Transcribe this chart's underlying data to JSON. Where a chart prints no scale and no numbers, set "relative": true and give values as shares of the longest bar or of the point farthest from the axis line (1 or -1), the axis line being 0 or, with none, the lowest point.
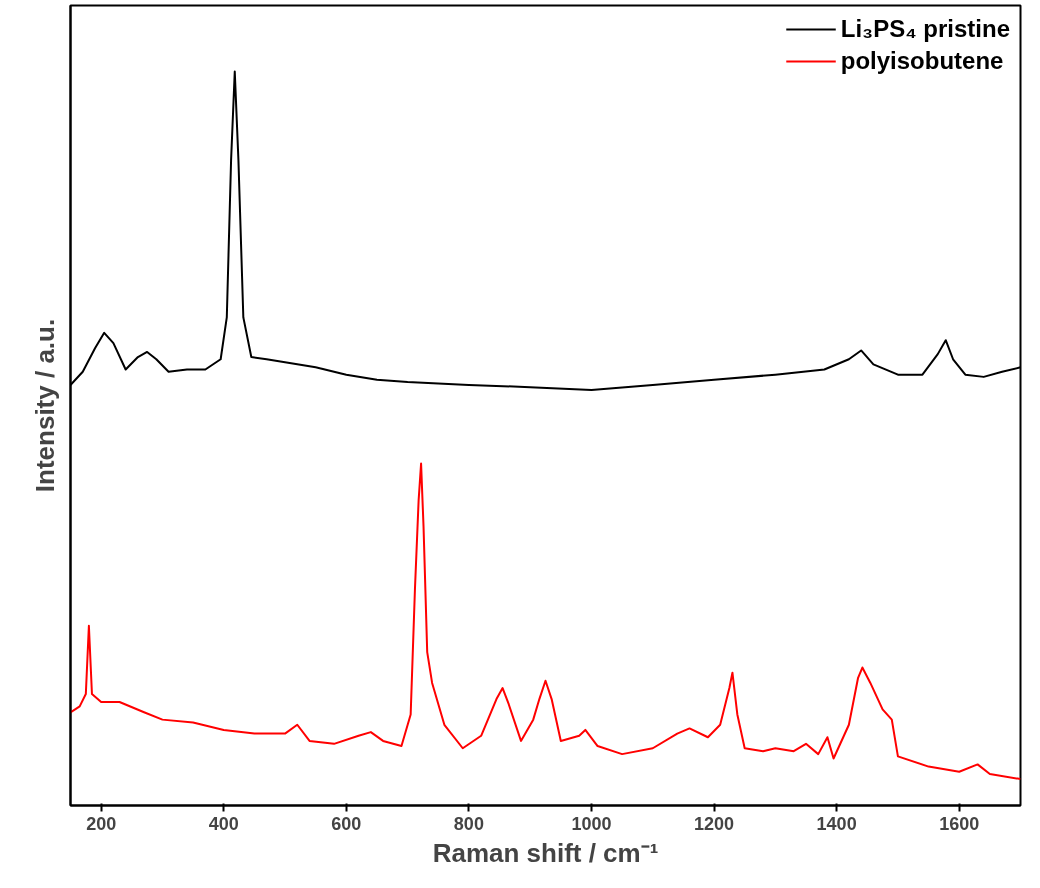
{
  "chart_data": {
    "type": "line",
    "relative": true,
    "xlabel": "Raman shift / cm⁻¹",
    "ylabel": "Intensity / a.u.",
    "xlim": [
      150,
      1700
    ],
    "xticks": [
      200,
      400,
      600,
      800,
      1000,
      1200,
      1400,
      1600
    ],
    "tick_labels": "x",
    "grid": false,
    "legend": "top right",
    "marker": "none",
    "line_style": "solid",
    "series": [
      {
        "name": "Li₃PS₄ pristine",
        "color": "#000000",
        "x": [
          150,
          170,
          190,
          205,
          220,
          240,
          260,
          275,
          290,
          310,
          340,
          370,
          395,
          405,
          412,
          418,
          424,
          432,
          445,
          470,
          500,
          550,
          600,
          650,
          700,
          800,
          900,
          1000,
          1100,
          1200,
          1300,
          1380,
          1420,
          1440,
          1460,
          1500,
          1540,
          1565,
          1578,
          1590,
          1610,
          1640,
          1670,
          1700
        ],
        "values": [
          0.573,
          0.591,
          0.623,
          0.644,
          0.63,
          0.594,
          0.611,
          0.618,
          0.608,
          0.591,
          0.594,
          0.594,
          0.608,
          0.665,
          0.879,
          1,
          0.879,
          0.665,
          0.611,
          0.608,
          0.604,
          0.597,
          0.587,
          0.58,
          0.577,
          0.573,
          0.57,
          0.566,
          0.573,
          0.58,
          0.587,
          0.594,
          0.608,
          0.62,
          0.601,
          0.587,
          0.587,
          0.615,
          0.634,
          0.608,
          0.587,
          0.584,
          0.591,
          0.597
        ]
      },
      {
        "name": "polyisobutene",
        "color": "#ff0000",
        "x": [
          150,
          165,
          175,
          180,
          185,
          200,
          230,
          270,
          300,
          350,
          400,
          450,
          500,
          520,
          540,
          580,
          620,
          640,
          660,
          690,
          705,
          712,
          718,
          722,
          726,
          732,
          740,
          760,
          790,
          820,
          845,
          855,
          865,
          885,
          905,
          915,
          925,
          935,
          950,
          980,
          990,
          1010,
          1050,
          1100,
          1140,
          1160,
          1190,
          1210,
          1225,
          1230,
          1238,
          1250,
          1280,
          1300,
          1330,
          1350,
          1370,
          1385,
          1395,
          1420,
          1435,
          1442,
          1455,
          1475,
          1490,
          1500,
          1550,
          1600,
          1630,
          1650,
          1700
        ],
        "values": [
          0.127,
          0.135,
          0.152,
          0.245,
          0.152,
          0.141,
          0.141,
          0.127,
          0.117,
          0.113,
          0.103,
          0.098,
          0.098,
          0.11,
          0.088,
          0.084,
          0.095,
          0.1,
          0.088,
          0.081,
          0.124,
          0.295,
          0.416,
          0.466,
          0.38,
          0.209,
          0.167,
          0.11,
          0.078,
          0.095,
          0.145,
          0.16,
          0.138,
          0.088,
          0.117,
          0.145,
          0.17,
          0.145,
          0.088,
          0.095,
          0.103,
          0.081,
          0.07,
          0.078,
          0.098,
          0.105,
          0.093,
          0.11,
          0.16,
          0.181,
          0.124,
          0.078,
          0.074,
          0.078,
          0.074,
          0.084,
          0.07,
          0.093,
          0.064,
          0.11,
          0.174,
          0.188,
          0.167,
          0.131,
          0.117,
          0.067,
          0.053,
          0.046,
          0.056,
          0.043,
          0.036
        ]
      }
    ]
  }
}
